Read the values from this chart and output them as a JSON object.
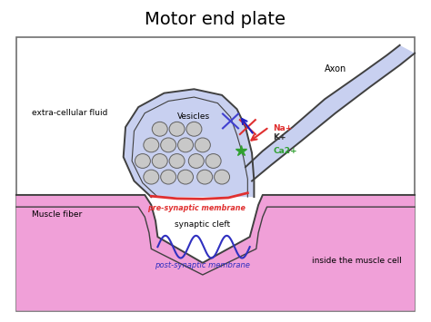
{
  "title": "Motor end plate",
  "title_fontsize": 14,
  "bg_color": "#ffffff",
  "axon_fill": "#c8d0f0",
  "muscle_fill": "#f0a0d8",
  "vesicle_color": "#c8c8c8",
  "pre_synaptic_color": "#e03030",
  "post_synaptic_color": "#3030c0",
  "wave_color": "#3030c0",
  "na_color": "#e03030",
  "k_color": "#303030",
  "ca_color": "#30a030",
  "outline_color": "#404040",
  "labels": {
    "axon": "Axon",
    "extra_cellular": "extra-cellular fluid",
    "vesicles": "Vesicles",
    "pre_synaptic": "pre-synaptic membrane",
    "synaptic_cleft": "synaptic cleft",
    "post_synaptic": "post-synaptic membrane",
    "muscle_fiber": "Muscle fiber",
    "inside_muscle": "inside the muscle cell",
    "na": "Na+",
    "k": "K+",
    "ca": "Ca2+"
  }
}
